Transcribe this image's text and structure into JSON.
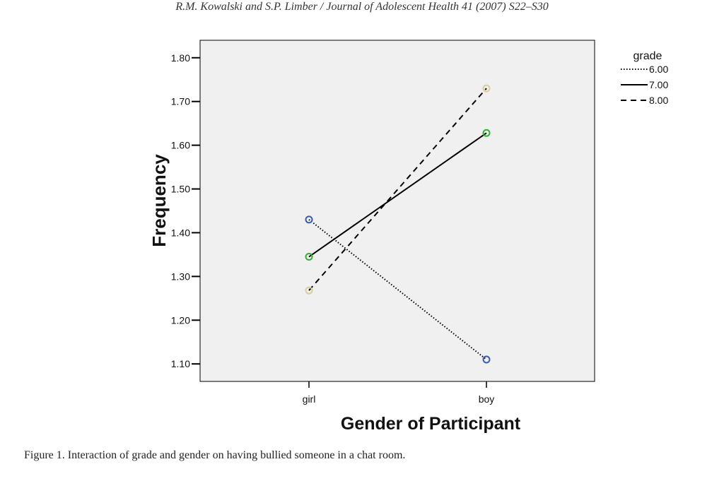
{
  "header": {
    "running_head": "R.M. Kowalski and S.P. Limber / Journal of Adolescent Health 41 (2007) S22–S30"
  },
  "caption": "Figure 1. Interaction of grade and gender on having bullied someone in a chat room.",
  "chart_data": {
    "type": "line",
    "xlabel": "Gender of Participant",
    "ylabel": "Frequency",
    "categories": [
      "girl",
      "boy"
    ],
    "ylim": [
      1.06,
      1.84
    ],
    "yticks": [
      "1.10",
      "1.20",
      "1.30",
      "1.40",
      "1.50",
      "1.60",
      "1.70",
      "1.80"
    ],
    "grid": false,
    "legend": {
      "title": "grade",
      "placement": "right"
    },
    "series": [
      {
        "name": "6.00",
        "values": [
          1.43,
          1.11
        ],
        "line_style": "dotted",
        "marker_color": "#3a5bb0"
      },
      {
        "name": "7.00",
        "values": [
          1.345,
          1.628
        ],
        "line_style": "solid",
        "marker_color": "#33b033"
      },
      {
        "name": "8.00",
        "values": [
          1.268,
          1.73
        ],
        "line_style": "dashed",
        "marker_color": "#d8cf9a"
      }
    ],
    "colors": {
      "plot_background": "#f0f0f0",
      "line": "#000000"
    }
  }
}
